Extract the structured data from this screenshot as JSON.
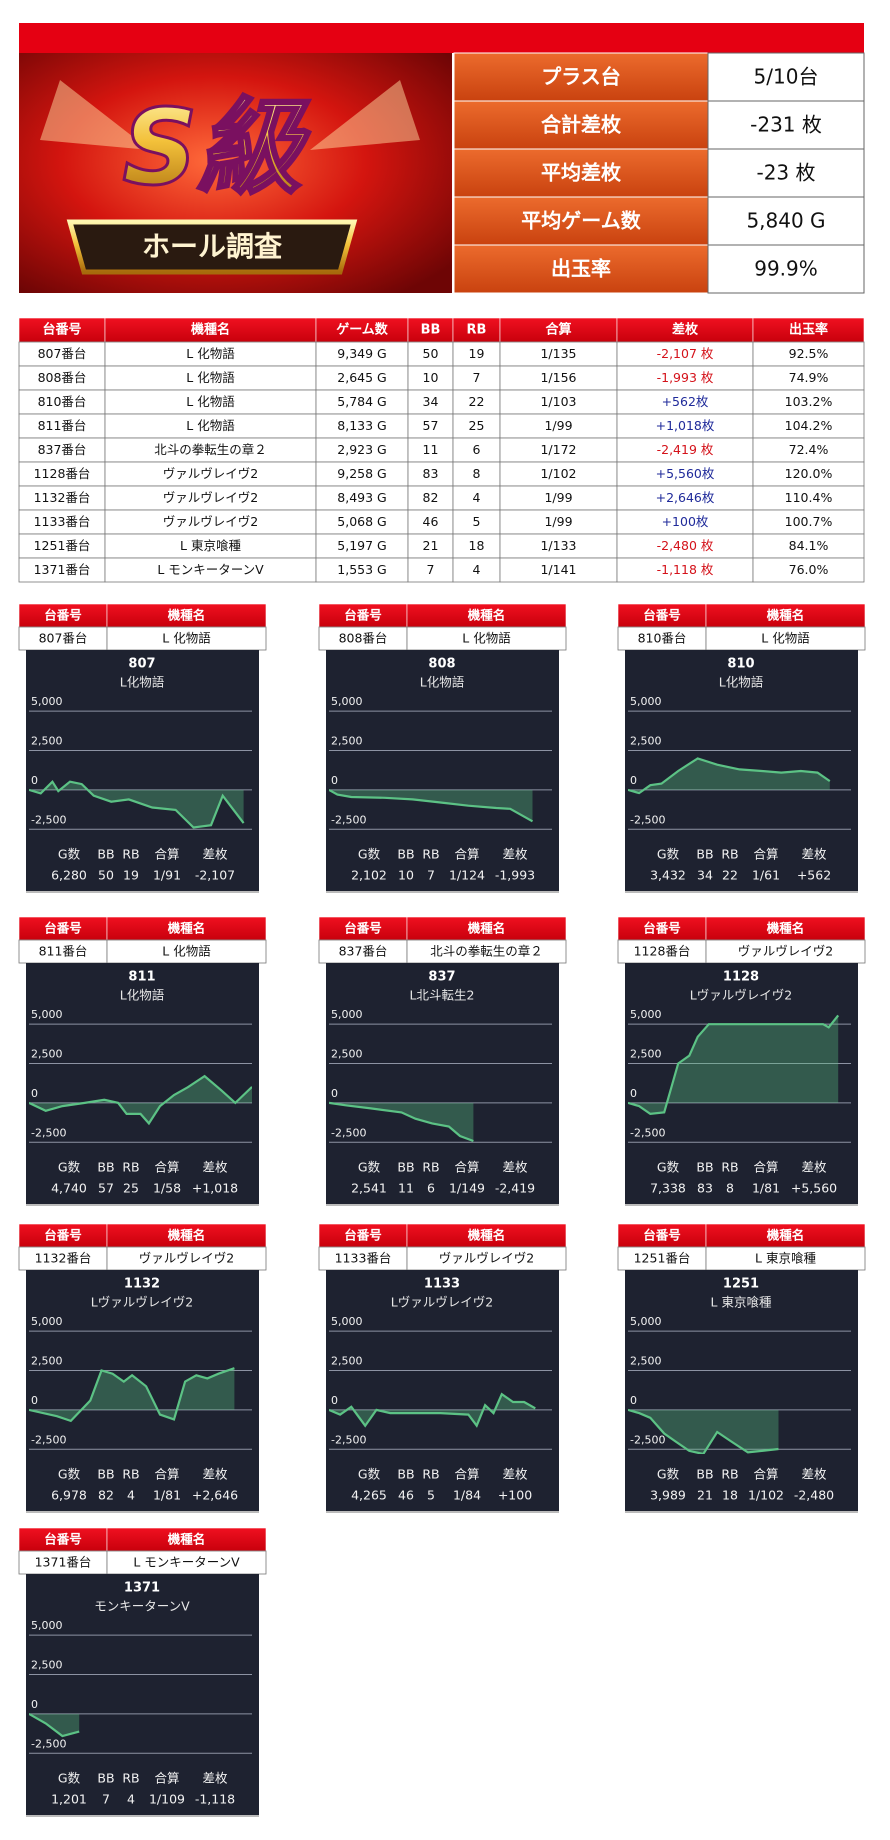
{
  "header": {
    "logo": "S級",
    "ribbon": "ホール調査"
  },
  "summary": {
    "rows": [
      {
        "label": "プラス台",
        "value": "5/10台"
      },
      {
        "label": "合計差枚",
        "value": "-231 枚"
      },
      {
        "label": "平均差枚",
        "value": "-23 枚"
      },
      {
        "label": "平均ゲーム数",
        "value": "5,840 G"
      },
      {
        "label": "出玉率",
        "value": "99.9%"
      }
    ]
  },
  "table": {
    "headers": [
      "台番号",
      "機種名",
      "ゲーム数",
      "BB",
      "RB",
      "合算",
      "差枚",
      "出玉率"
    ],
    "rows": [
      [
        "807番台",
        "L 化物語",
        "9,349 G",
        "50",
        "19",
        "1/135",
        "-2,107 枚",
        "92.5%"
      ],
      [
        "808番台",
        "L 化物語",
        "2,645 G",
        "10",
        "7",
        "1/156",
        "-1,993 枚",
        "74.9%"
      ],
      [
        "810番台",
        "L 化物語",
        "5,784 G",
        "34",
        "22",
        "1/103",
        "+562枚",
        "103.2%"
      ],
      [
        "811番台",
        "L 化物語",
        "8,133 G",
        "57",
        "25",
        "1/99",
        "+1,018枚",
        "104.2%"
      ],
      [
        "837番台",
        "北斗の拳転生の章２",
        "2,923 G",
        "11",
        "6",
        "1/172",
        "-2,419 枚",
        "72.4%"
      ],
      [
        "1128番台",
        "ヴァルヴレイヴ2",
        "9,258 G",
        "83",
        "8",
        "1/102",
        "+5,560枚",
        "120.0%"
      ],
      [
        "1132番台",
        "ヴァルヴレイヴ2",
        "8,493 G",
        "82",
        "4",
        "1/99",
        "+2,646枚",
        "110.4%"
      ],
      [
        "1133番台",
        "ヴァルヴレイヴ2",
        "5,068 G",
        "46",
        "5",
        "1/99",
        "+100枚",
        "100.7%"
      ],
      [
        "1251番台",
        "L 東京喰種",
        "5,197 G",
        "21",
        "18",
        "1/133",
        "-2,480 枚",
        "84.1%"
      ],
      [
        "1371番台",
        "L モンキーターンV",
        "1,553 G",
        "7",
        "4",
        "1/141",
        "-1,118 枚",
        "76.0%"
      ]
    ]
  },
  "card_headers": [
    "台番号",
    "機種名"
  ],
  "card_stat_labels": [
    "G数",
    "BB",
    "RB",
    "合算",
    "差枚"
  ],
  "cards": [
    {
      "number": "807番台",
      "name": "L 化物語",
      "stats": [
        "6,280",
        "50",
        "19",
        "1/91",
        "-2,107"
      ]
    },
    {
      "number": "808番台",
      "name": "L 化物語",
      "stats": [
        "2,102",
        "10",
        "7",
        "1/124",
        "-1,993"
      ]
    },
    {
      "number": "810番台",
      "name": "L 化物語",
      "stats": [
        "3,432",
        "34",
        "22",
        "1/61",
        "+562"
      ]
    },
    {
      "number": "811番台",
      "name": "L 化物語",
      "stats": [
        "4,740",
        "57",
        "25",
        "1/58",
        "+1,018"
      ]
    },
    {
      "number": "837番台",
      "name": "北斗の拳転生の章２",
      "stats": [
        "2,541",
        "11",
        "6",
        "1/149",
        "-2,419"
      ]
    },
    {
      "number": "1128番台",
      "name": "ヴァルヴレイヴ2",
      "stats": [
        "7,338",
        "83",
        "8",
        "1/81",
        "+5,560"
      ]
    },
    {
      "number": "1132番台",
      "name": "ヴァルヴレイヴ2",
      "stats": [
        "6,978",
        "82",
        "4",
        "1/81",
        "+2,646"
      ]
    },
    {
      "number": "1133番台",
      "name": "ヴァルヴレイヴ2",
      "stats": [
        "4,265",
        "46",
        "5",
        "1/84",
        "+100"
      ]
    },
    {
      "number": "1251番台",
      "name": "L 東京喰種",
      "stats": [
        "3,989",
        "21",
        "18",
        "1/102",
        "-2,480"
      ]
    },
    {
      "number": "1371番台",
      "name": "L モンキーターンV",
      "stats": [
        "1,201",
        "7",
        "4",
        "1/109",
        "-1,118"
      ]
    }
  ],
  "chart_data": [
    {
      "type": "line",
      "title": "807",
      "subtitle": "L化物語",
      "color": "#5cc285",
      "xlim": [
        0,
        8000
      ],
      "ylim": [
        -2800,
        5900
      ],
      "yticks": [
        {
          "value": 5000,
          "label": "5,000"
        },
        {
          "value": 2500,
          "label": "2,500"
        },
        0,
        {
          "value": -2500,
          "label": "-2,500"
        }
      ],
      "x": [
        0,
        420,
        840,
        1050,
        1470,
        1890,
        2320,
        2950,
        3580,
        4420,
        5260,
        5900,
        6530,
        6950,
        7700
      ],
      "values": [
        0,
        -220,
        520,
        -75,
        520,
        370,
        -370,
        -750,
        -600,
        -1120,
        -1270,
        -2390,
        -2240,
        -370,
        -2107
      ]
    },
    {
      "type": "line",
      "title": "808",
      "subtitle": "L化物語",
      "color": "#5cc285",
      "xlim": [
        0,
        8000
      ],
      "ylim": [
        -2800,
        5900
      ],
      "yticks": [
        {
          "value": 5000,
          "label": "5,000"
        },
        {
          "value": 2500,
          "label": "2,500"
        },
        0,
        {
          "value": -2500,
          "label": "-2,500"
        }
      ],
      "x": [
        0,
        300,
        800,
        2000,
        3000,
        4000,
        5000,
        6000,
        6500,
        7300
      ],
      "values": [
        0,
        -300,
        -450,
        -500,
        -600,
        -800,
        -1000,
        -1150,
        -1200,
        -1993
      ]
    },
    {
      "type": "line",
      "title": "810",
      "subtitle": "L化物語",
      "color": "#5cc285",
      "xlim": [
        0,
        8000
      ],
      "ylim": [
        -2800,
        5900
      ],
      "yticks": [
        {
          "value": 5000,
          "label": "5,000"
        },
        {
          "value": 2500,
          "label": "2,500"
        },
        0,
        {
          "value": -2500,
          "label": "-2,500"
        }
      ],
      "x": [
        0,
        400,
        800,
        1200,
        1800,
        2500,
        3200,
        4000,
        4800,
        5500,
        6200,
        6800,
        7240
      ],
      "values": [
        0,
        -200,
        300,
        400,
        1200,
        2000,
        1600,
        1300,
        1200,
        1100,
        1200,
        1100,
        562
      ]
    },
    {
      "type": "line",
      "title": "811",
      "subtitle": "L化物語",
      "color": "#5cc285",
      "xlim": [
        0,
        8000
      ],
      "ylim": [
        -2800,
        5900
      ],
      "yticks": [
        {
          "value": 5000,
          "label": "5,000"
        },
        {
          "value": 2500,
          "label": "2,500"
        },
        0,
        {
          "value": -2500,
          "label": "-2,500"
        }
      ],
      "x": [
        0,
        600,
        1200,
        2000,
        2700,
        3200,
        3500,
        4000,
        4300,
        4700,
        5200,
        5700,
        6300,
        6900,
        7400,
        8000
      ],
      "values": [
        0,
        -500,
        -200,
        0,
        200,
        0,
        -700,
        -700,
        -1300,
        -200,
        500,
        1000,
        1700,
        800,
        0,
        1018
      ]
    },
    {
      "type": "line",
      "title": "837",
      "subtitle": "L北斗転生2",
      "color": "#5cc285",
      "xlim": [
        0,
        8000
      ],
      "ylim": [
        -2800,
        5900
      ],
      "yticks": [
        {
          "value": 5000,
          "label": "5,000"
        },
        {
          "value": 2500,
          "label": "2,500"
        },
        0,
        {
          "value": -2500,
          "label": "-2,500"
        }
      ],
      "x": [
        0,
        600,
        1500,
        2600,
        3100,
        3700,
        4300,
        4700,
        5180
      ],
      "values": [
        0,
        -150,
        -350,
        -600,
        -1000,
        -1300,
        -1500,
        -2100,
        -2419
      ]
    },
    {
      "type": "line",
      "title": "1128",
      "subtitle": "Lヴァルヴレイヴ2",
      "color": "#5cc285",
      "xlim": [
        0,
        8000
      ],
      "ylim": [
        -2800,
        5900
      ],
      "yticks": [
        {
          "value": 5000,
          "label": "5,000"
        },
        {
          "value": 2500,
          "label": "2,500"
        },
        0,
        {
          "value": -2500,
          "label": "-2,500"
        }
      ],
      "x": [
        0,
        400,
        800,
        1300,
        1800,
        2200,
        2500,
        2900,
        4000,
        5500,
        7000,
        7200,
        7540
      ],
      "values": [
        0,
        -200,
        -700,
        -600,
        2500,
        3000,
        4200,
        5000,
        5000,
        5000,
        5000,
        4800,
        5560
      ]
    },
    {
      "type": "line",
      "title": "1132",
      "subtitle": "Lヴァルヴレイヴ2",
      "color": "#5cc285",
      "xlim": [
        0,
        8000
      ],
      "ylim": [
        -2800,
        5900
      ],
      "yticks": [
        {
          "value": 5000,
          "label": "5,000"
        },
        {
          "value": 2500,
          "label": "2,500"
        },
        0,
        {
          "value": -2500,
          "label": "-2,500"
        }
      ],
      "x": [
        0,
        1000,
        1500,
        2200,
        2600,
        3000,
        3400,
        3700,
        4200,
        4700,
        5200,
        5600,
        6000,
        6400,
        6800,
        7370
      ],
      "values": [
        0,
        -400,
        -700,
        600,
        2500,
        2300,
        1800,
        2200,
        1500,
        -300,
        -600,
        1800,
        2200,
        2000,
        2300,
        2646
      ]
    },
    {
      "type": "line",
      "title": "1133",
      "subtitle": "Lヴァルヴレイヴ2",
      "color": "#5cc285",
      "xlim": [
        0,
        8000
      ],
      "ylim": [
        -2800,
        5900
      ],
      "yticks": [
        {
          "value": 5000,
          "label": "5,000"
        },
        {
          "value": 2500,
          "label": "2,500"
        },
        0,
        {
          "value": -2500,
          "label": "-2,500"
        }
      ],
      "x": [
        0,
        400,
        800,
        1300,
        1700,
        2200,
        4000,
        5000,
        5300,
        5600,
        5900,
        6200,
        6600,
        7000,
        7400
      ],
      "values": [
        0,
        -300,
        200,
        -1000,
        0,
        -200,
        -200,
        -300,
        -1000,
        300,
        -200,
        1000,
        500,
        500,
        100
      ]
    },
    {
      "type": "line",
      "title": "1251",
      "subtitle": "L 東京喰種",
      "color": "#5cc285",
      "xlim": [
        0,
        8000
      ],
      "ylim": [
        -2800,
        5900
      ],
      "yticks": [
        {
          "value": 5000,
          "label": "5,000"
        },
        {
          "value": 2500,
          "label": "2,500"
        },
        0,
        {
          "value": -2500,
          "label": "-2,500"
        }
      ],
      "x": [
        0,
        400,
        800,
        1300,
        1700,
        2200,
        2700,
        3200,
        3700,
        4300,
        5400
      ],
      "values": [
        0,
        -200,
        -500,
        -1500,
        -2000,
        -2600,
        -2800,
        -1400,
        -2000,
        -2700,
        -2480
      ]
    },
    {
      "type": "line",
      "title": "1371",
      "subtitle": "モンキーターンV",
      "color": "#5cc285",
      "xlim": [
        0,
        8000
      ],
      "ylim": [
        -2800,
        5900
      ],
      "yticks": [
        {
          "value": 5000,
          "label": "5,000"
        },
        {
          "value": 2500,
          "label": "2,500"
        },
        0,
        {
          "value": -2500,
          "label": "-2,500"
        }
      ],
      "x": [
        0,
        600,
        1200,
        1800
      ],
      "values": [
        0,
        -600,
        -1400,
        -1118
      ]
    }
  ]
}
